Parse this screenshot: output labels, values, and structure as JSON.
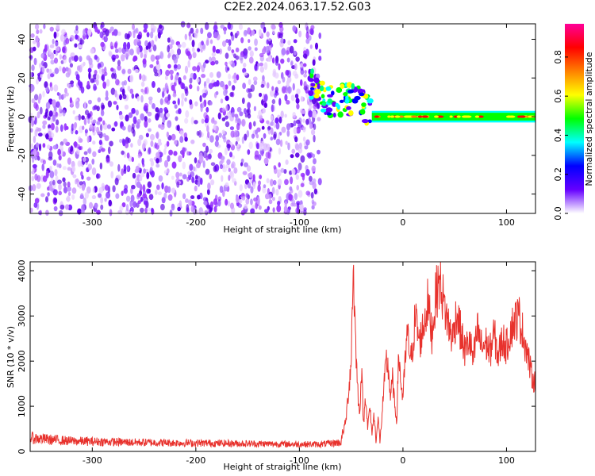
{
  "title": "C2E2.2024.063.17.52.G03",
  "colors": {
    "snr_line": "#e8322d",
    "axis": "#000000"
  },
  "chart_data": [
    {
      "id": "spectrogram",
      "type": "heatmap",
      "xlabel": "Height of straight line (km)",
      "ylabel": "Frequency (Hz)",
      "xlim": [
        -360,
        128
      ],
      "ylim": [
        -50,
        48
      ],
      "xticks": [
        -300,
        -200,
        -100,
        0,
        100
      ],
      "xtick_labels": [
        "-300",
        "-200",
        "-100",
        "0",
        "100"
      ],
      "yticks": [
        -40,
        -20,
        0,
        20,
        40
      ],
      "ytick_labels": [
        "-40",
        "-20",
        "0",
        "20",
        "40"
      ],
      "noise_region_x": [
        -360,
        -80
      ],
      "transition_region_x": [
        -90,
        -30
      ],
      "signal_line": {
        "x_start": -30,
        "x_end": 128,
        "frequency": 0
      },
      "colorbar": {
        "label": "Normalized spectral amplitude",
        "range": [
          0,
          0.97
        ],
        "ticks": [
          0.0,
          0.2,
          0.4,
          0.6,
          0.8
        ],
        "tick_labels": [
          "0.0",
          "0.2",
          "0.4",
          "0.6",
          "0.8"
        ],
        "colormap": [
          "#ffffff",
          "#6600ff",
          "#0000ff",
          "#00ffff",
          "#00ff00",
          "#ffff00",
          "#ff8000",
          "#ff0000",
          "#ff0099"
        ]
      }
    },
    {
      "id": "snr",
      "type": "line",
      "xlabel": "Height of straight line (km)",
      "ylabel": "SNR (10 * v/v)",
      "xlim": [
        -360,
        128
      ],
      "ylim": [
        0,
        4200
      ],
      "xticks": [
        -300,
        -200,
        -100,
        0,
        100
      ],
      "xtick_labels": [
        "-300",
        "-200",
        "-100",
        "0",
        "100"
      ],
      "yticks": [
        0,
        1000,
        2000,
        3000,
        4000
      ],
      "ytick_labels": [
        "0",
        "1000",
        "2000",
        "3000",
        "4000"
      ],
      "series": [
        {
          "x": [
            -360,
            -340,
            -320,
            -300,
            -280,
            -260,
            -240,
            -220,
            -200,
            -180,
            -160,
            -140,
            -120,
            -100,
            -80,
            -60,
            -55,
            -50,
            -48,
            -46,
            -44,
            -42,
            -40,
            -38,
            -36,
            -34,
            -32,
            -30,
            -28,
            -26,
            -24,
            -22,
            -20,
            -18,
            -16,
            -14,
            -12,
            -10,
            -8,
            -6,
            -4,
            -2,
            0,
            4,
            8,
            12,
            16,
            20,
            24,
            28,
            32,
            36,
            40,
            44,
            48,
            52,
            56,
            60,
            64,
            68,
            72,
            76,
            80,
            84,
            88,
            92,
            96,
            100,
            104,
            108,
            112,
            116,
            120,
            124,
            128
          ],
          "y": [
            300,
            260,
            230,
            220,
            210,
            200,
            195,
            190,
            185,
            180,
            175,
            170,
            165,
            160,
            155,
            200,
            700,
            2000,
            4200,
            2600,
            1500,
            800,
            1800,
            600,
            1300,
            500,
            1000,
            400,
            800,
            300,
            700,
            200,
            900,
            1500,
            2000,
            1800,
            1200,
            1600,
            1000,
            700,
            2200,
            1500,
            1200,
            2600,
            2000,
            3000,
            2400,
            2800,
            3300,
            2600,
            3500,
            3800,
            3200,
            2800,
            2500,
            3100,
            2600,
            2200,
            2500,
            2000,
            2700,
            2300,
            2400,
            2200,
            2600,
            2100,
            2500,
            2300,
            2700,
            2900,
            3000,
            2600,
            2200,
            1700,
            1500
          ]
        }
      ]
    }
  ]
}
